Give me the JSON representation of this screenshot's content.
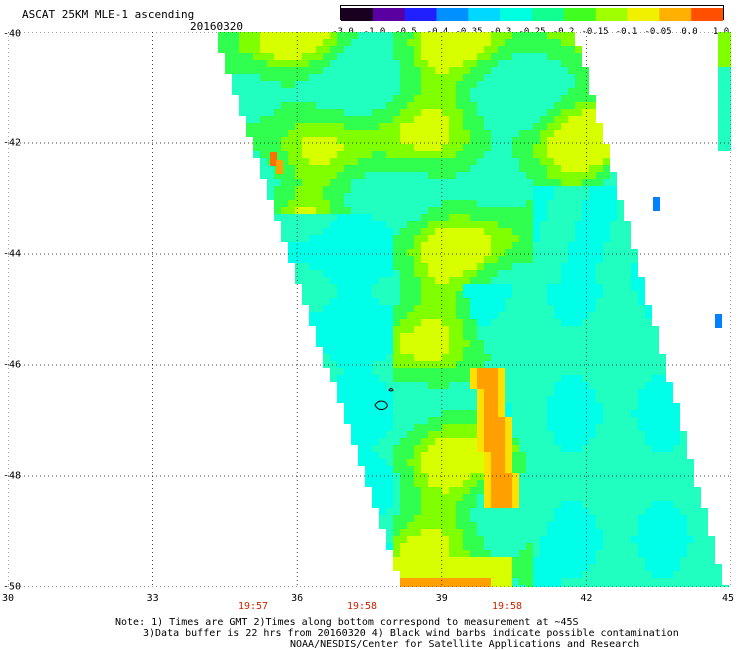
{
  "header": {
    "title": "ASCAT 25KM MLE-1 ascending",
    "date": "20160320"
  },
  "colorbar": {
    "ticks": [
      "-3.0",
      "-1.0",
      "-0.5",
      "-0.4",
      "-0.35",
      "-0.3",
      "-0.25",
      "-0.2",
      "-0.15",
      "-0.1",
      "-0.05",
      "0.0",
      "1.0"
    ],
    "colors": [
      "#1a0020",
      "#5a00a0",
      "#2020ff",
      "#0090ff",
      "#00d8ff",
      "#00ffe0",
      "#10ff90",
      "#40ff20",
      "#a0ff00",
      "#f0f000",
      "#ffb000",
      "#ff5000"
    ]
  },
  "axes": {
    "y_ticks": [
      "-40",
      "-42",
      "-44",
      "-46",
      "-48",
      "-50"
    ],
    "x_ticks": [
      "30",
      "33",
      "36",
      "39",
      "42",
      "45"
    ],
    "times": [
      "19:57",
      "19:58",
      "19:58"
    ],
    "grid": "dotted"
  },
  "field": {
    "palette": {
      "cyan": "#00ffe8",
      "aqua": "#20ffc0",
      "green": "#30ff50",
      "lime": "#80ff00",
      "yellow": "#d8ff00",
      "gold": "#ffe000",
      "orange": "#ffa000",
      "deeporange": "#ff7000",
      "blue": "#0080ff"
    }
  },
  "notes": [
    "Note: 1) Times are GMT 2)Times along bottom correspond to measurement at ~45S",
    "3)Data buffer is 22 hrs from 20160320 4) Black wind barbs indicate possible contamination",
    "NOAA/NESDIS/Center for Satellite Applications and Research"
  ]
}
